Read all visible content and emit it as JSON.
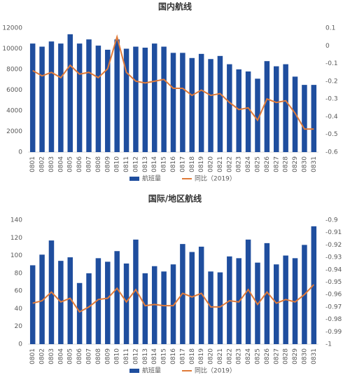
{
  "chart_data": [
    {
      "type": "bar",
      "title": "国内航线",
      "categories": [
        "0801",
        "0802",
        "0803",
        "0804",
        "0805",
        "0806",
        "0807",
        "0808",
        "0809",
        "0810",
        "0811",
        "0812",
        "0813",
        "0814",
        "0815",
        "0816",
        "0817",
        "0818",
        "0819",
        "0820",
        "0821",
        "0822",
        "0823",
        "0824",
        "0825",
        "0826",
        "0827",
        "0828",
        "0829",
        "0830",
        "0831"
      ],
      "series": [
        {
          "name": "航班量",
          "type": "bar",
          "color": "#1f4e9e",
          "values": [
            10500,
            10200,
            10700,
            10500,
            11400,
            10500,
            10900,
            10300,
            9900,
            10900,
            10000,
            10200,
            10100,
            10500,
            10200,
            9600,
            9600,
            9100,
            9500,
            9000,
            9300,
            8500,
            8000,
            7800,
            7100,
            8800,
            8300,
            8500,
            7300,
            6500,
            6500
          ]
        },
        {
          "name": "同比（2019）",
          "type": "line",
          "axis": "y2",
          "color": "#e07b39",
          "values": [
            -0.14,
            -0.17,
            -0.15,
            -0.18,
            -0.11,
            -0.16,
            -0.15,
            -0.18,
            -0.13,
            0.05,
            -0.15,
            -0.2,
            -0.21,
            -0.2,
            -0.19,
            -0.24,
            -0.24,
            -0.28,
            -0.25,
            -0.28,
            -0.27,
            -0.32,
            -0.36,
            -0.35,
            -0.42,
            -0.3,
            -0.32,
            -0.31,
            -0.38,
            -0.47,
            -0.47
          ]
        }
      ],
      "ylim": [
        0,
        12000
      ],
      "yticks": [
        0,
        2000,
        4000,
        6000,
        8000,
        10000,
        12000
      ],
      "y2lim": [
        -0.6,
        0.1
      ],
      "y2ticks": [
        0.1,
        0,
        -0.1,
        -0.2,
        -0.3,
        -0.4,
        -0.5,
        -0.6
      ]
    },
    {
      "type": "bar",
      "title": "国际/地区航线",
      "categories": [
        "0801",
        "0802",
        "0803",
        "0804",
        "0805",
        "0806",
        "0807",
        "0808",
        "0809",
        "0810",
        "0811",
        "0812",
        "0813",
        "0814",
        "0815",
        "0816",
        "0817",
        "0818",
        "0819",
        "0820",
        "0821",
        "0822",
        "0823",
        "0824",
        "0825",
        "0826",
        "0827",
        "0828",
        "0829",
        "0830",
        "0831"
      ],
      "series": [
        {
          "name": "航班量",
          "type": "bar",
          "color": "#1f4e9e",
          "values": [
            89,
            101,
            117,
            94,
            98,
            69,
            80,
            97,
            93,
            105,
            91,
            118,
            80,
            88,
            82,
            90,
            113,
            104,
            110,
            82,
            81,
            99,
            97,
            118,
            92,
            114,
            90,
            100,
            97,
            112,
            133
          ]
        },
        {
          "name": "同比（2019）",
          "type": "line",
          "axis": "y2",
          "color": "#e07b39",
          "values": [
            -0.967,
            -0.965,
            -0.958,
            -0.966,
            -0.963,
            -0.974,
            -0.97,
            -0.964,
            -0.963,
            -0.955,
            -0.966,
            -0.956,
            -0.969,
            -0.968,
            -0.969,
            -0.969,
            -0.959,
            -0.962,
            -0.959,
            -0.97,
            -0.97,
            -0.965,
            -0.966,
            -0.956,
            -0.968,
            -0.958,
            -0.967,
            -0.964,
            -0.966,
            -0.96,
            -0.952
          ]
        }
      ],
      "ylim": [
        0,
        140
      ],
      "yticks": [
        0,
        20,
        40,
        60,
        80,
        100,
        120,
        140
      ],
      "y2lim": [
        -1,
        -0.9
      ],
      "y2ticks": [
        -0.9,
        -0.91,
        -0.92,
        -0.93,
        -0.94,
        -0.95,
        -0.96,
        -0.97,
        -0.98,
        -0.99,
        -1
      ]
    }
  ]
}
